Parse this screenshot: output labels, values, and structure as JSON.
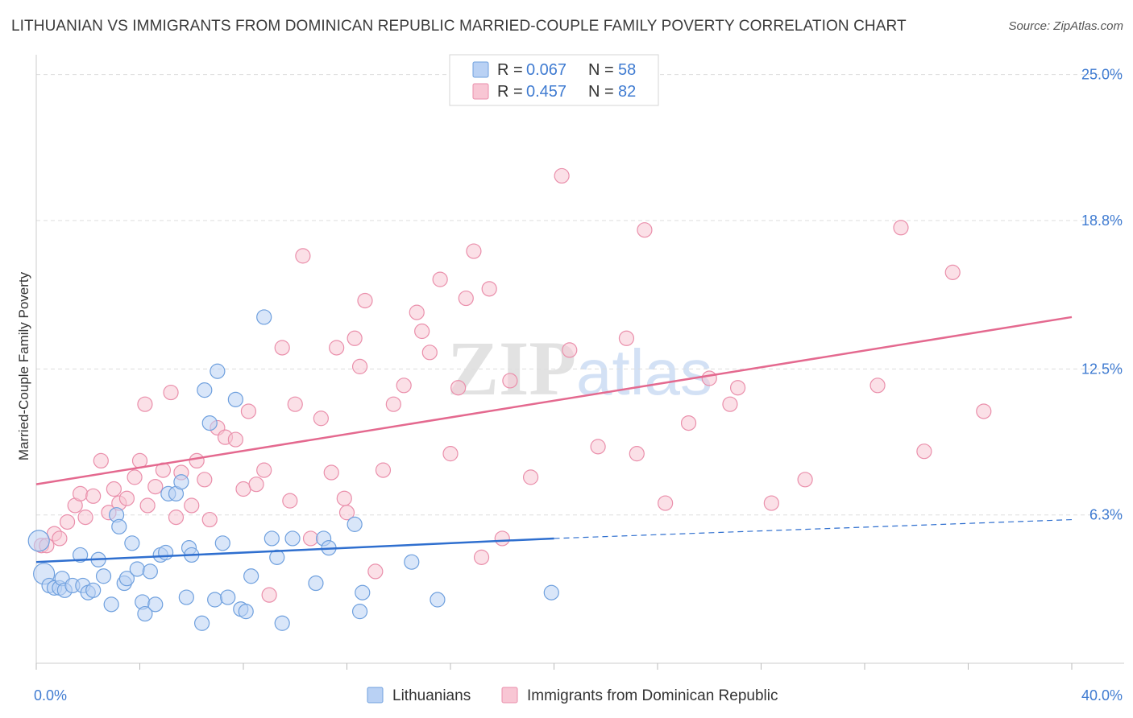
{
  "title": "LITHUANIAN VS IMMIGRANTS FROM DOMINICAN REPUBLIC MARRIED-COUPLE FAMILY POVERTY CORRELATION CHART",
  "source": "Source: ZipAtlas.com",
  "watermark": {
    "zip": "ZIP",
    "atlas": "atlas"
  },
  "colors": {
    "blue_fill": "#b9d1f4",
    "blue_stroke": "#6fa0de",
    "blue_line": "#2f6fcf",
    "pink_fill": "#f8c6d4",
    "pink_stroke": "#ea8fab",
    "pink_line": "#e4698f",
    "label_blue": "#3f7bd1",
    "grid": "#dddddd"
  },
  "legend": {
    "r_label": "R =",
    "n_label": "N =",
    "rows": [
      {
        "r": "0.067",
        "n": "58"
      },
      {
        "r": "0.457",
        "n": "82"
      }
    ]
  },
  "chart_data": {
    "type": "scatter",
    "title": "LITHUANIAN VS IMMIGRANTS FROM DOMINICAN REPUBLIC MARRIED-COUPLE FAMILY POVERTY CORRELATION CHART",
    "xlabel": "",
    "ylabel": "Married-Couple Family Poverty",
    "xlim": [
      0,
      40
    ],
    "ylim": [
      0,
      25.5
    ],
    "x_tick_labels": [
      "0.0%",
      "40.0%"
    ],
    "y_ticks": [
      6.3,
      12.5,
      18.8,
      25.0
    ],
    "y_tick_labels": [
      "6.3%",
      "12.5%",
      "18.8%",
      "25.0%"
    ],
    "grid": "horizontal dashed",
    "legend_position": "top-center",
    "series": [
      {
        "name": "Lithuanians",
        "r": 0.067,
        "n": 58,
        "trend": {
          "x0": 0,
          "y0": 4.3,
          "x1": 20,
          "y1": 5.3,
          "dashed_to_x": 40,
          "dashed_to_y": 6.1
        },
        "points": [
          [
            0.1,
            5.2
          ],
          [
            0.3,
            3.8
          ],
          [
            0.5,
            3.3
          ],
          [
            0.7,
            3.2
          ],
          [
            0.9,
            3.2
          ],
          [
            1.0,
            3.6
          ],
          [
            1.1,
            3.1
          ],
          [
            1.4,
            3.3
          ],
          [
            1.7,
            4.6
          ],
          [
            1.8,
            3.3
          ],
          [
            2.0,
            3.0
          ],
          [
            2.2,
            3.1
          ],
          [
            2.4,
            4.4
          ],
          [
            2.6,
            3.7
          ],
          [
            2.9,
            2.5
          ],
          [
            3.1,
            6.3
          ],
          [
            3.2,
            5.8
          ],
          [
            3.4,
            3.4
          ],
          [
            3.5,
            3.6
          ],
          [
            3.7,
            5.1
          ],
          [
            3.9,
            4.0
          ],
          [
            4.1,
            2.6
          ],
          [
            4.2,
            2.1
          ],
          [
            4.4,
            3.9
          ],
          [
            4.6,
            2.5
          ],
          [
            4.8,
            4.6
          ],
          [
            5.0,
            4.7
          ],
          [
            5.1,
            7.2
          ],
          [
            5.4,
            7.2
          ],
          [
            5.6,
            7.7
          ],
          [
            5.8,
            2.8
          ],
          [
            5.9,
            4.9
          ],
          [
            6.0,
            4.6
          ],
          [
            6.4,
            1.7
          ],
          [
            6.5,
            11.6
          ],
          [
            6.7,
            10.2
          ],
          [
            6.9,
            2.7
          ],
          [
            7.0,
            12.4
          ],
          [
            7.2,
            5.1
          ],
          [
            7.4,
            2.8
          ],
          [
            7.7,
            11.2
          ],
          [
            7.9,
            2.3
          ],
          [
            8.1,
            2.2
          ],
          [
            8.3,
            3.7
          ],
          [
            8.8,
            14.7
          ],
          [
            9.1,
            5.3
          ],
          [
            9.3,
            4.5
          ],
          [
            9.5,
            1.7
          ],
          [
            9.9,
            5.3
          ],
          [
            10.8,
            3.4
          ],
          [
            11.1,
            5.3
          ],
          [
            11.3,
            4.9
          ],
          [
            12.3,
            5.9
          ],
          [
            12.5,
            2.2
          ],
          [
            12.6,
            3.0
          ],
          [
            14.5,
            4.3
          ],
          [
            15.5,
            2.7
          ],
          [
            19.9,
            3.0
          ]
        ]
      },
      {
        "name": "Immigrants from Dominican Republic",
        "r": 0.457,
        "n": 82,
        "trend": {
          "x0": 0,
          "y0": 7.6,
          "x1": 40,
          "y1": 14.7
        },
        "points": [
          [
            0.2,
            5.0
          ],
          [
            0.4,
            5.0
          ],
          [
            0.7,
            5.5
          ],
          [
            0.9,
            5.3
          ],
          [
            1.2,
            6.0
          ],
          [
            1.5,
            6.7
          ],
          [
            1.7,
            7.2
          ],
          [
            1.9,
            6.2
          ],
          [
            2.2,
            7.1
          ],
          [
            2.5,
            8.6
          ],
          [
            2.8,
            6.4
          ],
          [
            3.0,
            7.4
          ],
          [
            3.2,
            6.8
          ],
          [
            3.5,
            7.0
          ],
          [
            3.8,
            7.9
          ],
          [
            4.0,
            8.6
          ],
          [
            4.2,
            11.0
          ],
          [
            4.3,
            6.7
          ],
          [
            4.6,
            7.5
          ],
          [
            4.9,
            8.2
          ],
          [
            5.2,
            11.5
          ],
          [
            5.4,
            6.2
          ],
          [
            5.6,
            8.1
          ],
          [
            6.0,
            6.7
          ],
          [
            6.2,
            8.6
          ],
          [
            6.5,
            7.8
          ],
          [
            6.7,
            6.1
          ],
          [
            7.0,
            10.0
          ],
          [
            7.3,
            9.6
          ],
          [
            7.7,
            9.5
          ],
          [
            8.0,
            7.4
          ],
          [
            8.2,
            10.7
          ],
          [
            8.5,
            7.6
          ],
          [
            8.8,
            8.2
          ],
          [
            9.0,
            2.9
          ],
          [
            9.5,
            13.4
          ],
          [
            9.8,
            6.9
          ],
          [
            10.0,
            11.0
          ],
          [
            10.3,
            17.3
          ],
          [
            10.6,
            5.3
          ],
          [
            11.0,
            10.4
          ],
          [
            11.4,
            8.1
          ],
          [
            11.6,
            13.4
          ],
          [
            11.9,
            7.0
          ],
          [
            12.0,
            6.4
          ],
          [
            12.3,
            13.8
          ],
          [
            12.5,
            12.6
          ],
          [
            12.7,
            15.4
          ],
          [
            13.1,
            3.9
          ],
          [
            13.4,
            8.2
          ],
          [
            13.8,
            11.0
          ],
          [
            14.2,
            11.8
          ],
          [
            14.7,
            14.9
          ],
          [
            14.9,
            14.1
          ],
          [
            15.2,
            13.2
          ],
          [
            15.6,
            16.3
          ],
          [
            16.0,
            8.9
          ],
          [
            16.3,
            11.7
          ],
          [
            16.6,
            15.5
          ],
          [
            16.9,
            17.5
          ],
          [
            17.2,
            4.5
          ],
          [
            17.5,
            15.9
          ],
          [
            18.0,
            5.3
          ],
          [
            18.3,
            12.0
          ],
          [
            19.1,
            7.9
          ],
          [
            20.3,
            20.7
          ],
          [
            20.6,
            13.3
          ],
          [
            21.7,
            9.2
          ],
          [
            22.8,
            13.8
          ],
          [
            23.2,
            8.9
          ],
          [
            23.5,
            18.4
          ],
          [
            24.3,
            6.8
          ],
          [
            25.2,
            10.2
          ],
          [
            26.0,
            12.1
          ],
          [
            26.8,
            11.0
          ],
          [
            27.1,
            11.7
          ],
          [
            28.4,
            6.8
          ],
          [
            29.7,
            7.8
          ],
          [
            32.5,
            11.8
          ],
          [
            33.4,
            18.5
          ],
          [
            34.3,
            9.0
          ],
          [
            35.4,
            16.6
          ],
          [
            36.6,
            10.7
          ]
        ]
      }
    ]
  }
}
